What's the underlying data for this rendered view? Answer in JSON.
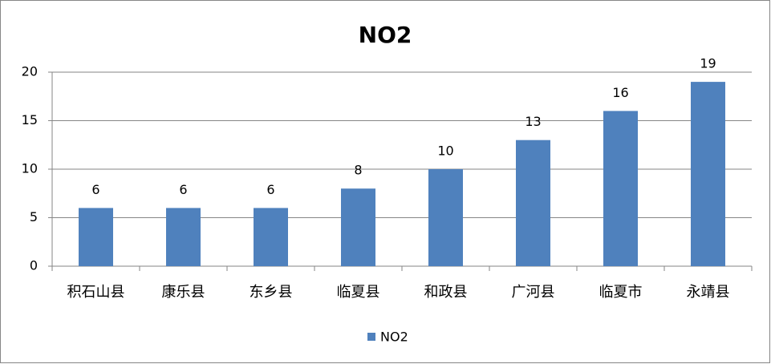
{
  "chart_data": {
    "type": "bar",
    "title": "NO2",
    "categories": [
      "积石山县",
      "康乐县",
      "东乡县",
      "临夏县",
      "和政县",
      "广河县",
      "临夏市",
      "永靖县"
    ],
    "series": [
      {
        "name": "NO2",
        "color": "#4f81bd",
        "values": [
          6,
          6,
          6,
          8,
          10,
          13,
          16,
          19
        ]
      }
    ],
    "ylim": [
      0,
      20
    ],
    "yticks": [
      0,
      5,
      10,
      15,
      20
    ],
    "grid": true,
    "legend": "bottom"
  }
}
